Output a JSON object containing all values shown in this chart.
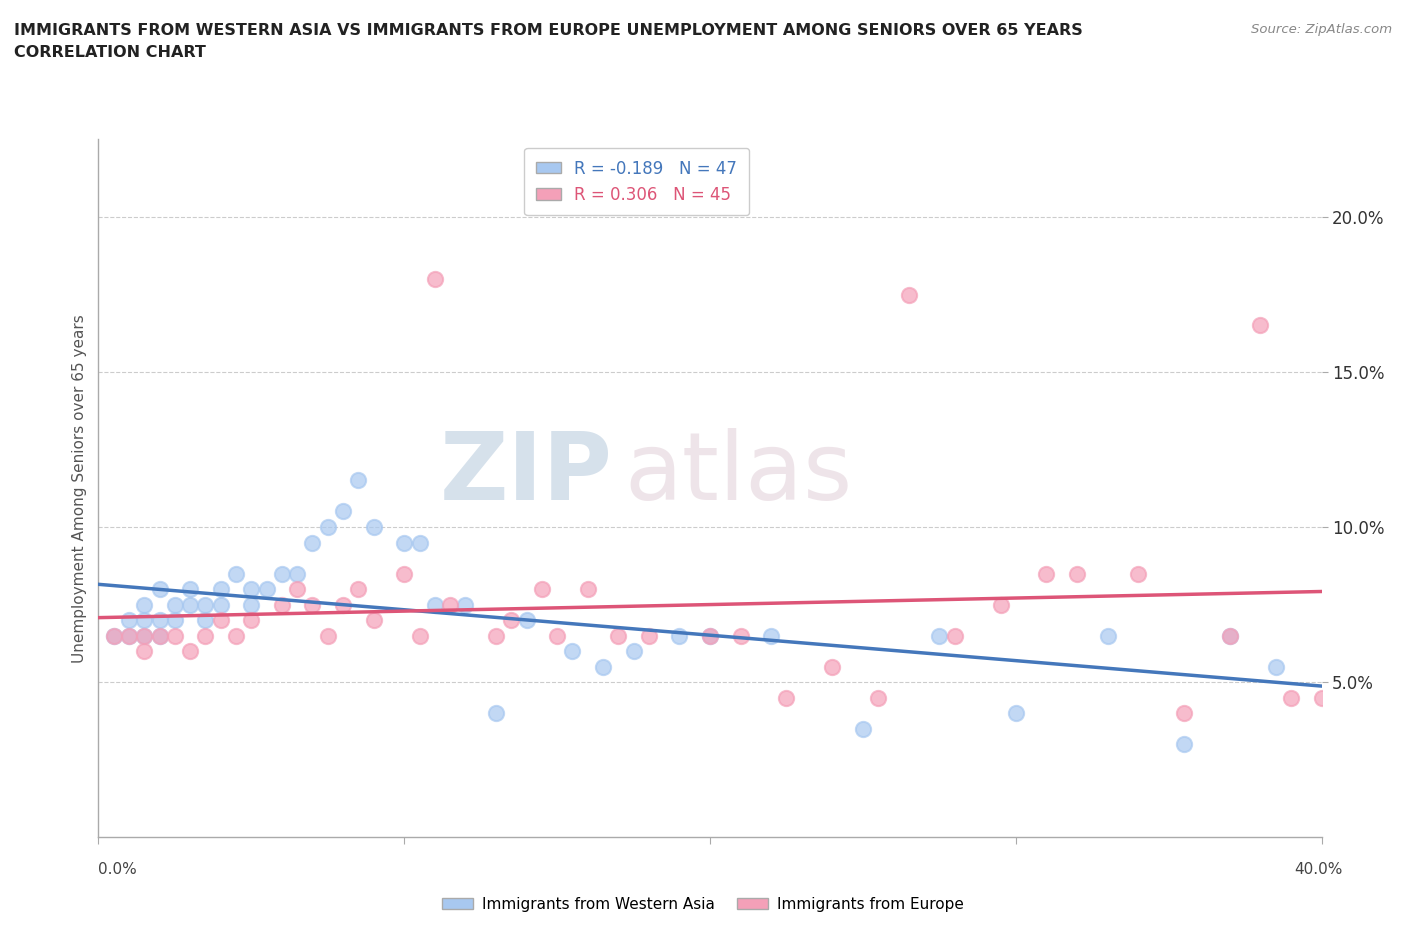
{
  "title_line1": "IMMIGRANTS FROM WESTERN ASIA VS IMMIGRANTS FROM EUROPE UNEMPLOYMENT AMONG SENIORS OVER 65 YEARS",
  "title_line2": "CORRELATION CHART",
  "source": "Source: ZipAtlas.com",
  "ylabel": "Unemployment Among Seniors over 65 years",
  "legend_blue_label": "Immigrants from Western Asia",
  "legend_pink_label": "Immigrants from Europe",
  "r_blue": -0.189,
  "n_blue": 47,
  "r_pink": 0.306,
  "n_pink": 45,
  "yticks": [
    0.05,
    0.1,
    0.15,
    0.2
  ],
  "ytick_labels": [
    "5.0%",
    "10.0%",
    "15.0%",
    "20.0%"
  ],
  "xlim": [
    0.0,
    0.4
  ],
  "ylim": [
    0.0,
    0.225
  ],
  "blue_color": "#A8C8F0",
  "pink_color": "#F4A0B8",
  "blue_line_color": "#4477BB",
  "pink_line_color": "#DD5577",
  "watermark_zip": "ZIP",
  "watermark_atlas": "atlas",
  "blue_scatter_x": [
    0.005,
    0.01,
    0.01,
    0.015,
    0.015,
    0.015,
    0.02,
    0.02,
    0.02,
    0.025,
    0.025,
    0.03,
    0.03,
    0.035,
    0.035,
    0.04,
    0.04,
    0.045,
    0.05,
    0.05,
    0.055,
    0.06,
    0.065,
    0.07,
    0.075,
    0.08,
    0.085,
    0.09,
    0.1,
    0.105,
    0.11,
    0.12,
    0.13,
    0.14,
    0.155,
    0.165,
    0.175,
    0.19,
    0.2,
    0.22,
    0.25,
    0.275,
    0.3,
    0.33,
    0.355,
    0.37,
    0.385
  ],
  "blue_scatter_y": [
    0.065,
    0.065,
    0.07,
    0.065,
    0.07,
    0.075,
    0.065,
    0.07,
    0.08,
    0.07,
    0.075,
    0.075,
    0.08,
    0.07,
    0.075,
    0.075,
    0.08,
    0.085,
    0.08,
    0.075,
    0.08,
    0.085,
    0.085,
    0.095,
    0.1,
    0.105,
    0.115,
    0.1,
    0.095,
    0.095,
    0.075,
    0.075,
    0.04,
    0.07,
    0.06,
    0.055,
    0.06,
    0.065,
    0.065,
    0.065,
    0.035,
    0.065,
    0.04,
    0.065,
    0.03,
    0.065,
    0.055
  ],
  "pink_scatter_x": [
    0.005,
    0.01,
    0.015,
    0.015,
    0.02,
    0.025,
    0.03,
    0.035,
    0.04,
    0.045,
    0.05,
    0.06,
    0.065,
    0.07,
    0.075,
    0.08,
    0.085,
    0.09,
    0.1,
    0.105,
    0.11,
    0.115,
    0.13,
    0.135,
    0.145,
    0.15,
    0.16,
    0.17,
    0.18,
    0.2,
    0.21,
    0.225,
    0.24,
    0.255,
    0.265,
    0.28,
    0.295,
    0.31,
    0.32,
    0.34,
    0.355,
    0.37,
    0.38,
    0.39,
    0.4
  ],
  "pink_scatter_y": [
    0.065,
    0.065,
    0.06,
    0.065,
    0.065,
    0.065,
    0.06,
    0.065,
    0.07,
    0.065,
    0.07,
    0.075,
    0.08,
    0.075,
    0.065,
    0.075,
    0.08,
    0.07,
    0.085,
    0.065,
    0.18,
    0.075,
    0.065,
    0.07,
    0.08,
    0.065,
    0.08,
    0.065,
    0.065,
    0.065,
    0.065,
    0.045,
    0.055,
    0.045,
    0.175,
    0.065,
    0.075,
    0.085,
    0.085,
    0.085,
    0.04,
    0.065,
    0.165,
    0.045,
    0.045
  ]
}
